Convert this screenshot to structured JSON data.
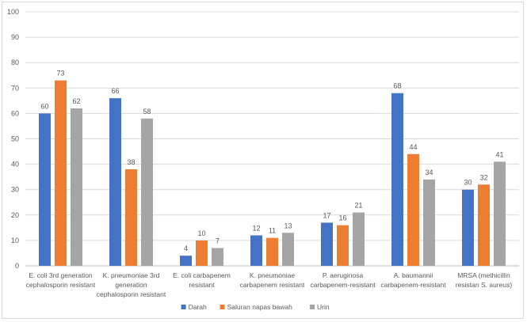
{
  "chart_data": {
    "type": "bar",
    "title": "",
    "xlabel": "",
    "ylabel": "",
    "ylim": [
      0,
      100
    ],
    "yticks": [
      0,
      10,
      20,
      30,
      40,
      50,
      60,
      70,
      80,
      90,
      100
    ],
    "grid": true,
    "legend_position": "bottom",
    "categories": [
      [
        "E. coli 3rd generation",
        "cephalosporin resistant"
      ],
      [
        "K. pneumoniae 3rd",
        "generation",
        "cephalosporin resistant"
      ],
      [
        "E. coli carbapenem",
        "resistant"
      ],
      [
        "K. pneumoniae",
        "carbapenem resistant"
      ],
      [
        "P. aeruginosa",
        "carbapenem-resistant"
      ],
      [
        "A. baumannii",
        "carbapenem-resistant"
      ],
      [
        "MRSA (methicillin",
        "resistan S. aureus)"
      ]
    ],
    "series": [
      {
        "name": "Darah",
        "color": "#4472c4",
        "values": [
          60,
          66,
          4,
          12,
          17,
          68,
          30
        ]
      },
      {
        "name": "Saluran napas bawah",
        "color": "#ed7d31",
        "values": [
          73,
          38,
          10,
          11,
          16,
          44,
          32
        ]
      },
      {
        "name": "Urin",
        "color": "#a5a5a5",
        "values": [
          62,
          58,
          7,
          13,
          21,
          34,
          41
        ]
      }
    ]
  }
}
